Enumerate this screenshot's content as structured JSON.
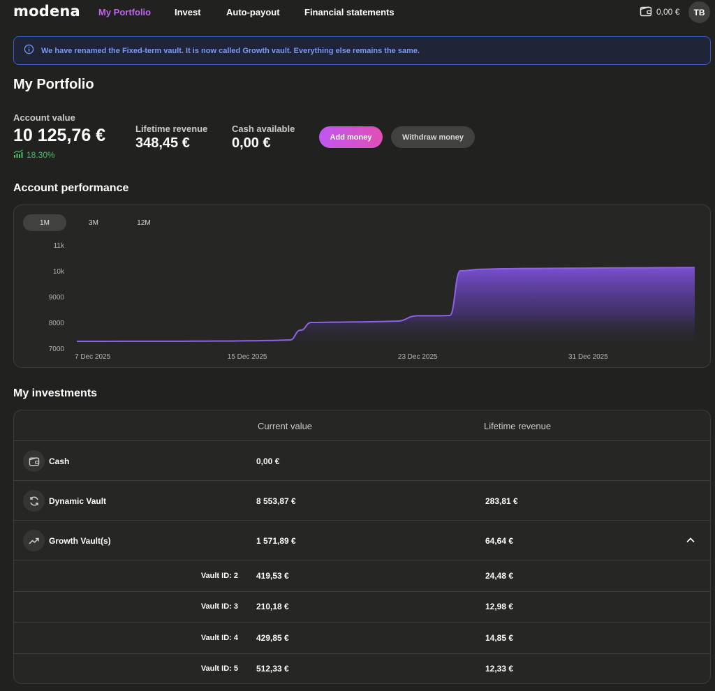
{
  "brand": {
    "logo": "modena",
    "accent": "#c163f4"
  },
  "nav": {
    "items": [
      {
        "label": "My Portfolio",
        "active": true
      },
      {
        "label": "Invest"
      },
      {
        "label": "Auto-payout"
      },
      {
        "label": "Financial statements"
      }
    ],
    "wallet_balance": "0,00 €",
    "avatar_initials": "TB"
  },
  "banner": {
    "icon": "info-icon",
    "text": "We have renamed the Fixed-term vault. It is now called Growth vault. Everything else remains the same."
  },
  "page_title": "My Portfolio",
  "summary": {
    "account_value_label": "Account value",
    "account_value": "10 125,76 €",
    "growth": "18.30%",
    "lifetime_revenue_label": "Lifetime revenue",
    "lifetime_revenue": "348,45 €",
    "cash_available_label": "Cash available",
    "cash_available": "0,00 €",
    "add_money": "Add money",
    "withdraw_money": "Withdraw money"
  },
  "performance": {
    "title": "Account performance",
    "ranges": [
      "1M",
      "3M",
      "12M"
    ],
    "active_range": "1M"
  },
  "chart_data": {
    "type": "area",
    "title": "",
    "xlabel": "",
    "ylabel": "",
    "ylim": [
      7000,
      11000
    ],
    "yticks": [
      7000,
      8000,
      9000,
      10000,
      11000
    ],
    "ytick_labels": [
      "7000",
      "8000",
      "9000",
      "10k",
      "11k"
    ],
    "xtick_labels": [
      "7 Dec 2025",
      "15 Dec 2025",
      "23 Dec 2025",
      "31 Dec 2025"
    ],
    "xtick_days": [
      0,
      8,
      16,
      24
    ],
    "x_days": [
      0,
      1,
      2,
      3,
      4,
      5,
      6,
      7,
      8,
      9,
      10,
      10.5,
      11,
      12,
      13,
      14,
      15,
      16,
      17,
      17.5,
      18,
      19,
      20,
      21,
      22,
      23,
      24,
      25,
      26,
      27,
      28,
      29
    ],
    "x_domain": [
      0,
      29
    ],
    "values": [
      7270,
      7270,
      7272,
      7272,
      7274,
      7275,
      7278,
      7280,
      7290,
      7300,
      7320,
      7700,
      8000,
      8010,
      8020,
      8030,
      8050,
      8260,
      8260,
      8270,
      10000,
      10060,
      10080,
      10090,
      10095,
      10100,
      10105,
      10110,
      10115,
      10118,
      10122,
      10126
    ],
    "grid": false,
    "color": "#8e62e6"
  },
  "investments": {
    "title": "My investments",
    "columns": [
      "Current value",
      "Lifetime revenue"
    ],
    "rows": [
      {
        "name": "Cash",
        "icon": "wallet-icon",
        "current": "0,00 €",
        "revenue": ""
      },
      {
        "name": "Dynamic Vault",
        "icon": "refresh-icon",
        "current": "8 553,87 €",
        "revenue": "283,81 €"
      },
      {
        "name": "Growth Vault(s)",
        "icon": "trend-up-icon",
        "current": "1 571,89 €",
        "revenue": "64,64 €"
      }
    ],
    "vaults": [
      {
        "label": "Vault ID: 2",
        "current": "419,53 €",
        "revenue": "24,48 €"
      },
      {
        "label": "Vault ID: 3",
        "current": "210,18 €",
        "revenue": "12,98 €"
      },
      {
        "label": "Vault ID: 4",
        "current": "429,85 €",
        "revenue": "14,85 €"
      },
      {
        "label": "Vault ID: 5",
        "current": "512,33 €",
        "revenue": "12,33 €"
      }
    ]
  }
}
